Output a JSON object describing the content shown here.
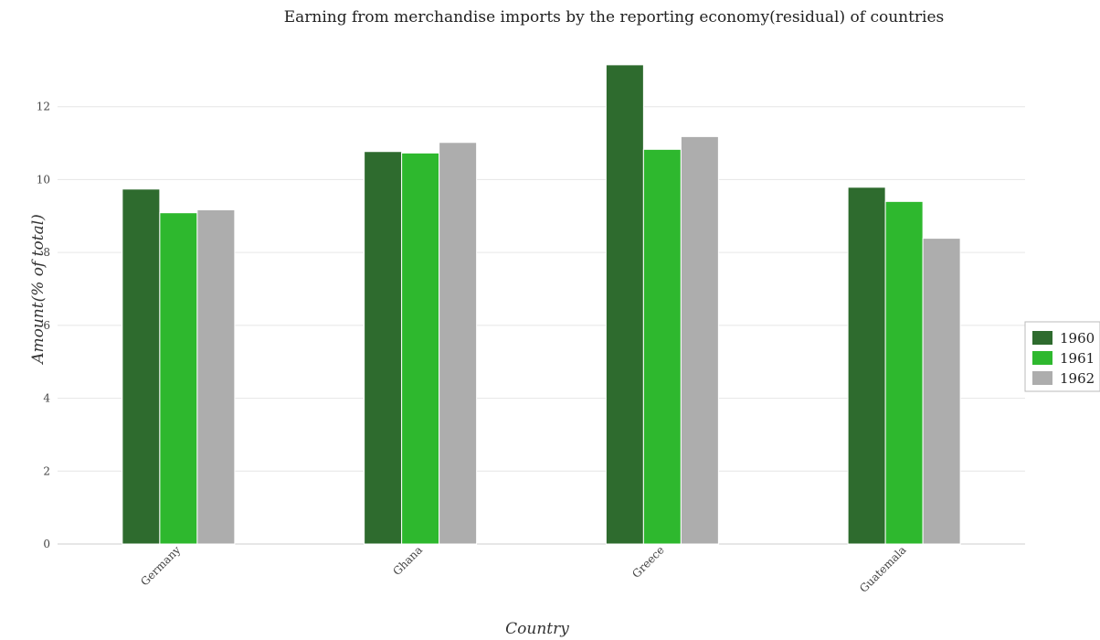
{
  "chart_data": {
    "type": "bar",
    "title": "Earning from merchandise imports by the reporting economy(residual) of countries",
    "xlabel": "Country",
    "ylabel": "Amount(% of total)",
    "categories": [
      "Germany",
      "Ghana",
      "Greece",
      "Guatemala"
    ],
    "series": [
      {
        "name": "1960",
        "color": "#2e6b2e",
        "values": [
          9.74,
          10.77,
          13.15,
          9.79
        ]
      },
      {
        "name": "1961",
        "color": "#2eb82e",
        "values": [
          9.09,
          10.73,
          10.83,
          9.4
        ]
      },
      {
        "name": "1962",
        "color": "#adadad",
        "values": [
          9.17,
          11.02,
          11.18,
          8.39
        ]
      }
    ],
    "ylim": [
      0,
      14
    ],
    "yticks": [
      0,
      2,
      4,
      6,
      8,
      10,
      12
    ],
    "grid": true,
    "legend_position": "right"
  }
}
